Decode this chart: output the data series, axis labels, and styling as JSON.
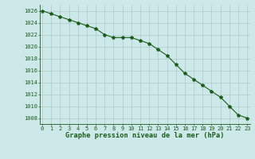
{
  "x": [
    0,
    1,
    2,
    3,
    4,
    5,
    6,
    7,
    8,
    9,
    10,
    11,
    12,
    13,
    14,
    15,
    16,
    17,
    18,
    19,
    20,
    21,
    22,
    23
  ],
  "y": [
    1026.0,
    1025.5,
    1025.0,
    1024.5,
    1024.0,
    1023.5,
    1023.0,
    1022.0,
    1021.5,
    1021.5,
    1021.5,
    1021.0,
    1020.5,
    1019.5,
    1018.5,
    1017.0,
    1015.5,
    1014.5,
    1013.5,
    1012.5,
    1011.5,
    1010.0,
    1008.5,
    1008.0
  ],
  "line_color": "#1a5c1a",
  "marker": "*",
  "bg_color": "#cce8e8",
  "grid_color": "#b0c8c8",
  "xlabel": "Graphe pression niveau de la mer (hPa)",
  "xlabel_color": "#1a5c1a",
  "tick_color": "#1a5c1a",
  "ylim": [
    1007,
    1027
  ],
  "xlim": [
    -0.3,
    23.3
  ],
  "yticks": [
    1008,
    1010,
    1012,
    1014,
    1016,
    1018,
    1020,
    1022,
    1024,
    1026
  ],
  "xticks": [
    0,
    1,
    2,
    3,
    4,
    5,
    6,
    7,
    8,
    9,
    10,
    11,
    12,
    13,
    14,
    15,
    16,
    17,
    18,
    19,
    20,
    21,
    22,
    23
  ],
  "tick_fontsize": 5.0,
  "xlabel_fontsize": 6.2,
  "linewidth": 0.8,
  "markersize": 3.0
}
